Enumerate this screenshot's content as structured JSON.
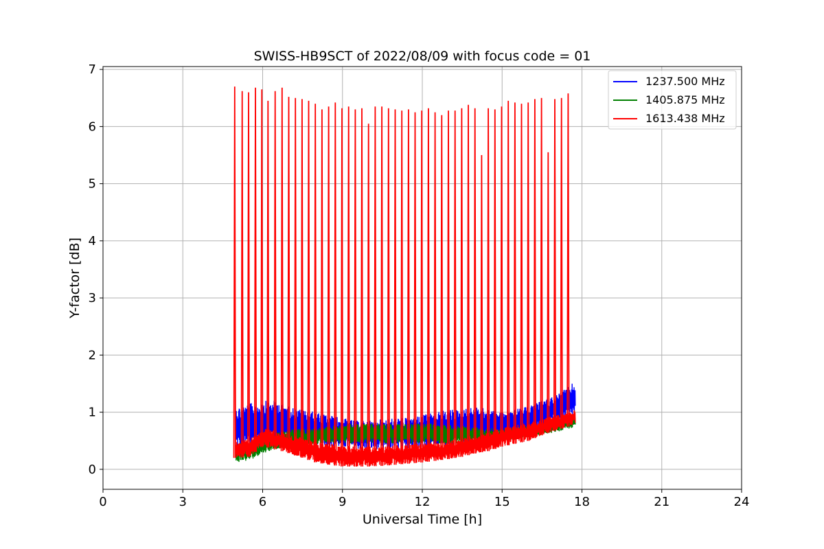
{
  "chart_data": {
    "type": "line",
    "title": "SWISS-HB9SCT of 2022/08/09 with focus code = 01",
    "xlabel": "Universal Time [h]",
    "ylabel": "Y-factor [dB]",
    "xlim": [
      0,
      24
    ],
    "ylim": [
      -0.35,
      7.05
    ],
    "x_ticks": [
      0,
      3,
      6,
      9,
      12,
      15,
      18,
      21,
      24
    ],
    "y_ticks": [
      0,
      1,
      2,
      3,
      4,
      5,
      6,
      7
    ],
    "grid": true,
    "legend_position": "top-right",
    "series": [
      {
        "name": "1237.500 MHz",
        "color": "#0000ff",
        "x": [
          5.0,
          5.5,
          6.0,
          6.5,
          7.0,
          7.5,
          8.0,
          8.5,
          9.0,
          9.5,
          10.0,
          10.5,
          11.0,
          11.5,
          12.0,
          12.5,
          13.0,
          13.5,
          14.0,
          14.5,
          15.0,
          15.5,
          16.0,
          16.5,
          17.0,
          17.5,
          17.75
        ],
        "low": [
          0.35,
          0.4,
          0.45,
          0.55,
          0.5,
          0.45,
          0.42,
          0.4,
          0.38,
          0.35,
          0.35,
          0.35,
          0.35,
          0.35,
          0.38,
          0.4,
          0.42,
          0.45,
          0.45,
          0.5,
          0.55,
          0.6,
          0.65,
          0.72,
          0.8,
          0.9,
          0.95
        ],
        "high": [
          1.1,
          1.15,
          1.2,
          1.2,
          1.1,
          1.05,
          1.0,
          0.95,
          0.9,
          0.85,
          0.85,
          0.88,
          0.9,
          0.9,
          0.95,
          1.0,
          1.05,
          1.05,
          1.1,
          1.05,
          1.0,
          1.05,
          1.1,
          1.2,
          1.3,
          1.45,
          1.55
        ]
      },
      {
        "name": "1405.875 MHz",
        "color": "#008000",
        "x": [
          5.0,
          5.5,
          6.0,
          6.5,
          7.0,
          7.5,
          8.0,
          8.5,
          9.0,
          9.5,
          10.0,
          10.5,
          11.0,
          11.5,
          12.0,
          12.5,
          13.0,
          13.5,
          14.0,
          14.5,
          15.0,
          15.5,
          16.0,
          16.5,
          17.0,
          17.5,
          17.75
        ],
        "low": [
          0.12,
          0.15,
          0.28,
          0.35,
          0.4,
          0.42,
          0.44,
          0.45,
          0.45,
          0.45,
          0.45,
          0.45,
          0.45,
          0.45,
          0.45,
          0.45,
          0.45,
          0.45,
          0.45,
          0.45,
          0.48,
          0.52,
          0.56,
          0.6,
          0.65,
          0.7,
          0.75
        ],
        "high": [
          0.45,
          0.5,
          0.55,
          0.65,
          0.7,
          0.72,
          0.72,
          0.75,
          0.78,
          0.8,
          0.8,
          0.8,
          0.8,
          0.8,
          0.8,
          0.8,
          0.78,
          0.76,
          0.74,
          0.72,
          0.72,
          0.74,
          0.76,
          0.8,
          0.85,
          0.9,
          0.95
        ]
      },
      {
        "name": "1613.438 MHz",
        "color": "#ff0000",
        "x": [
          5.0,
          5.5,
          6.0,
          6.5,
          7.0,
          7.5,
          8.0,
          8.5,
          9.0,
          9.5,
          10.0,
          10.5,
          11.0,
          11.5,
          12.0,
          12.5,
          13.0,
          13.5,
          14.0,
          14.5,
          15.0,
          15.5,
          16.0,
          16.5,
          17.0,
          17.5,
          17.75
        ],
        "low": [
          0.2,
          0.22,
          0.4,
          0.35,
          0.28,
          0.2,
          0.12,
          0.08,
          0.05,
          0.05,
          0.05,
          0.06,
          0.08,
          0.1,
          0.12,
          0.15,
          0.18,
          0.22,
          0.28,
          0.32,
          0.4,
          0.45,
          0.5,
          0.6,
          0.68,
          0.75,
          0.8
        ],
        "high": [
          0.5,
          0.52,
          0.72,
          0.68,
          0.62,
          0.55,
          0.5,
          0.45,
          0.42,
          0.4,
          0.4,
          0.4,
          0.42,
          0.44,
          0.46,
          0.48,
          0.5,
          0.55,
          0.6,
          0.65,
          0.72,
          0.78,
          0.82,
          0.88,
          0.95,
          1.0,
          1.05
        ],
        "spikes_x": [
          4.95,
          5.23,
          5.47,
          5.73,
          5.97,
          6.2,
          6.47,
          6.73,
          6.98,
          7.23,
          7.48,
          7.73,
          7.98,
          8.23,
          8.48,
          8.73,
          8.98,
          9.23,
          9.48,
          9.73,
          9.98,
          10.23,
          10.48,
          10.73,
          10.98,
          11.23,
          11.48,
          11.73,
          11.98,
          12.23,
          12.48,
          12.73,
          12.98,
          13.23,
          13.48,
          13.73,
          13.98,
          14.23,
          14.48,
          14.73,
          14.98,
          15.23,
          15.48,
          15.73,
          15.98,
          16.23,
          16.48,
          16.73,
          16.98,
          17.23,
          17.48
        ],
        "spikes_y": [
          6.7,
          6.62,
          6.6,
          6.68,
          6.65,
          6.45,
          6.62,
          6.68,
          6.52,
          6.5,
          6.48,
          6.45,
          6.4,
          6.3,
          6.35,
          6.42,
          6.32,
          6.35,
          6.3,
          6.32,
          6.05,
          6.35,
          6.35,
          6.32,
          6.3,
          6.28,
          6.3,
          6.25,
          6.28,
          6.32,
          6.25,
          6.2,
          6.28,
          6.28,
          6.32,
          6.38,
          6.32,
          5.5,
          6.32,
          6.3,
          6.35,
          6.45,
          6.42,
          6.4,
          6.42,
          6.48,
          6.5,
          5.55,
          6.48,
          6.5,
          6.58
        ]
      }
    ]
  }
}
